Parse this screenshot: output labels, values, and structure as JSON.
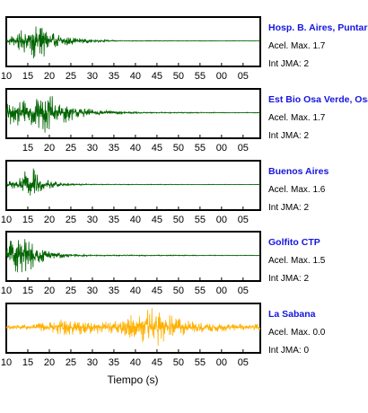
{
  "chart_data": {
    "type": "line",
    "xlabel": "Tiempo (s)",
    "tick_labels": [
      "10",
      "15",
      "20",
      "25",
      "30",
      "35",
      "40",
      "45",
      "50",
      "55",
      "00",
      "05"
    ],
    "xlim": [
      10,
      69
    ],
    "stations": [
      {
        "name": "Hosp. B. Aires, Puntare",
        "acel_label": "Acel. Max. 1.7",
        "int_label": "Int JMA: 2",
        "color": "#006400",
        "ticks_row": "10-05",
        "envelope": [
          [
            10,
            0.05
          ],
          [
            11,
            0.25
          ],
          [
            12,
            0.35
          ],
          [
            13,
            0.5
          ],
          [
            14,
            0.55
          ],
          [
            15,
            0.7
          ],
          [
            16,
            0.85
          ],
          [
            17,
            0.85
          ],
          [
            18,
            1.0
          ],
          [
            19,
            0.75
          ],
          [
            20,
            0.5
          ],
          [
            21,
            0.4
          ],
          [
            23,
            0.28
          ],
          [
            25,
            0.2
          ],
          [
            28,
            0.12
          ],
          [
            31,
            0.07
          ],
          [
            34,
            0.04
          ],
          [
            38,
            0.02
          ],
          [
            69,
            0.01
          ]
        ]
      },
      {
        "name": "Est Bio Osa Verde, Osa",
        "acel_label": "Acel. Max. 1.7",
        "int_label": "Int JMA: 2",
        "color": "#006400",
        "ticks_row": "15-05",
        "envelope": [
          [
            10,
            0.4
          ],
          [
            11,
            0.6
          ],
          [
            12,
            0.55
          ],
          [
            13,
            0.7
          ],
          [
            15,
            0.65
          ],
          [
            17,
            0.8
          ],
          [
            19,
            1.0
          ],
          [
            20,
            0.85
          ],
          [
            21,
            0.8
          ],
          [
            22,
            0.65
          ],
          [
            24,
            0.45
          ],
          [
            26,
            0.3
          ],
          [
            29,
            0.2
          ],
          [
            32,
            0.12
          ],
          [
            36,
            0.07
          ],
          [
            42,
            0.03
          ],
          [
            69,
            0.015
          ]
        ]
      },
      {
        "name": "Buenos Aires",
        "acel_label": "Acel. Max. 1.6",
        "int_label": "Int JMA: 2",
        "color": "#006400",
        "ticks_row": "10-05",
        "envelope": [
          [
            10,
            0.1
          ],
          [
            11,
            0.2
          ],
          [
            12,
            0.25
          ],
          [
            13,
            0.35
          ],
          [
            14,
            0.55
          ],
          [
            15,
            0.8
          ],
          [
            16,
            1.0
          ],
          [
            17,
            0.65
          ],
          [
            18,
            0.4
          ],
          [
            20,
            0.2
          ],
          [
            22,
            0.1
          ],
          [
            25,
            0.05
          ],
          [
            30,
            0.02
          ],
          [
            69,
            0.01
          ]
        ]
      },
      {
        "name": "Golfito CTP",
        "acel_label": "Acel. Max. 1.5",
        "int_label": "Int JMA: 2",
        "color": "#006400",
        "ticks_row": "10-05",
        "envelope": [
          [
            10,
            0.45
          ],
          [
            11,
            0.7
          ],
          [
            12,
            0.9
          ],
          [
            13,
            1.0
          ],
          [
            14,
            0.85
          ],
          [
            15,
            0.8
          ],
          [
            16,
            0.7
          ],
          [
            17,
            0.5
          ],
          [
            19,
            0.3
          ],
          [
            21,
            0.2
          ],
          [
            23,
            0.12
          ],
          [
            26,
            0.06
          ],
          [
            30,
            0.03
          ],
          [
            69,
            0.015
          ]
        ]
      },
      {
        "name": "La Sabana",
        "acel_label": "Acel. Max. 0.0",
        "int_label": "Int JMA: 0",
        "color": "#FFB000",
        "ticks_row": "10-05",
        "envelope": [
          [
            10,
            0.12
          ],
          [
            14,
            0.12
          ],
          [
            17,
            0.18
          ],
          [
            20,
            0.25
          ],
          [
            22,
            0.35
          ],
          [
            23,
            0.45
          ],
          [
            25,
            0.38
          ],
          [
            28,
            0.35
          ],
          [
            31,
            0.3
          ],
          [
            34,
            0.3
          ],
          [
            37,
            0.4
          ],
          [
            39,
            0.7
          ],
          [
            41,
            0.75
          ],
          [
            43,
            0.85
          ],
          [
            44,
            1.0
          ],
          [
            45,
            0.9
          ],
          [
            47,
            0.7
          ],
          [
            49,
            0.5
          ],
          [
            52,
            0.35
          ],
          [
            56,
            0.25
          ],
          [
            60,
            0.2
          ],
          [
            69,
            0.15
          ]
        ]
      }
    ]
  }
}
